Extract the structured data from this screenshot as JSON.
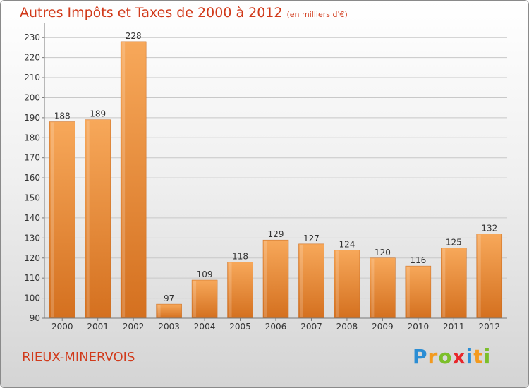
{
  "title": "Autres Impôts et Taxes de 2000 à 2012",
  "subtitle": "(en milliers d'€)",
  "commune": "RIEUX-MINERVOIS",
  "logo": {
    "letters": [
      "P",
      "r",
      "o",
      "x",
      "i",
      "t",
      "i"
    ],
    "colors": [
      "#2a8dd4",
      "#f39a1e",
      "#7cbf2a",
      "#e8262b",
      "#2a8dd4",
      "#f39a1e",
      "#7cbf2a"
    ]
  },
  "colors": {
    "bar_light": "#f7a85a",
    "bar_dark": "#d4701f",
    "accent_text": "#d13a1b"
  },
  "chart_data": {
    "type": "bar",
    "title": "Autres Impôts et Taxes de 2000 à 2012",
    "subtitle": "(en milliers d'€)",
    "categories": [
      "2000",
      "2001",
      "2002",
      "2003",
      "2004",
      "2005",
      "2006",
      "2007",
      "2008",
      "2009",
      "2010",
      "2011",
      "2012"
    ],
    "values": [
      188,
      189,
      228,
      97,
      109,
      118,
      129,
      127,
      124,
      120,
      116,
      125,
      132
    ],
    "ylim": [
      90,
      235
    ],
    "yticks": [
      90,
      100,
      110,
      120,
      130,
      140,
      150,
      160,
      170,
      180,
      190,
      200,
      210,
      220,
      230
    ],
    "grid": true,
    "xlabel": "",
    "ylabel": ""
  }
}
